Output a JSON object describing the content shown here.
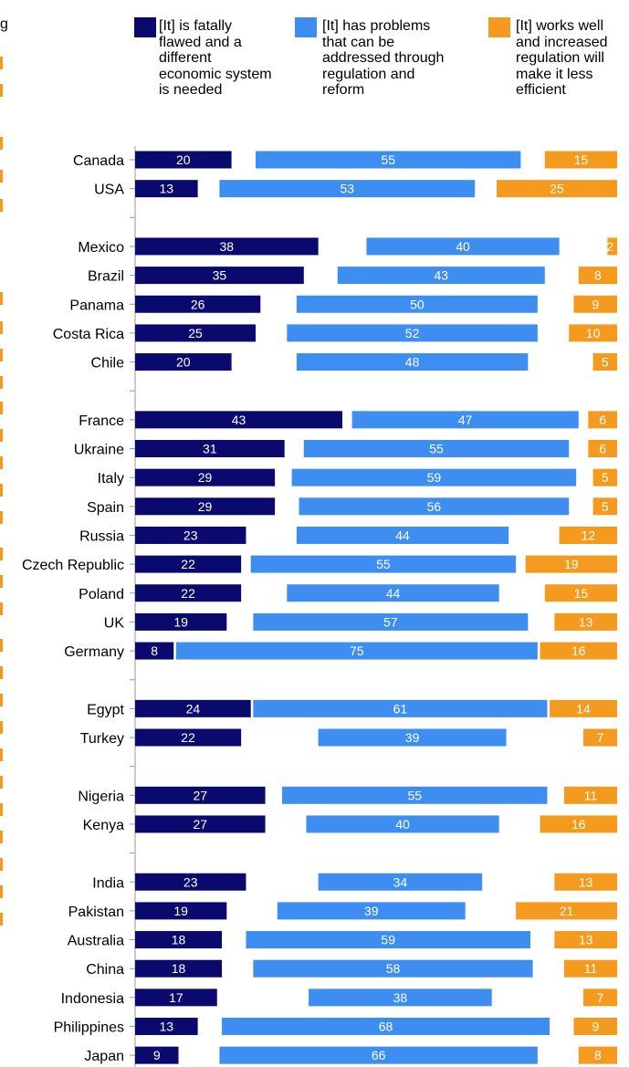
{
  "colors": {
    "fatally_flawed": "#0a0a6e",
    "has_problems": "#3d8ef0",
    "works_well": "#f39a1f",
    "axis": "#999999"
  },
  "legend": [
    {
      "key": "fatally_flawed",
      "label": "[It] is fatally\nflawed and a\ndifferent\neconomic system\nis needed"
    },
    {
      "key": "has_problems",
      "label": "[It] has problems\nthat can be\naddressed through\nregulation and\nreform"
    },
    {
      "key": "works_well",
      "label": "[It] works well\nand increased\nregulation will\nmake it less\nefficient"
    }
  ],
  "cropped_text": "g",
  "chart_data": {
    "type": "bar",
    "orientation": "horizontal",
    "layout": "stacked-offset",
    "groups": [
      [
        "Canada",
        "USA"
      ],
      [
        "Mexico",
        "Brazil",
        "Panama",
        "Costa Rica",
        "Chile"
      ],
      [
        "France",
        "Ukraine",
        "Italy",
        "Spain",
        "Russia",
        "Czech Republic",
        "Poland",
        "UK",
        "Germany"
      ],
      [
        "Egypt",
        "Turkey"
      ],
      [
        "Nigeria",
        "Kenya"
      ],
      [
        "India",
        "Pakistan",
        "Australia",
        "China",
        "Indonesia",
        "Philippines",
        "Japan"
      ]
    ],
    "categories": [
      "Canada",
      "USA",
      "Mexico",
      "Brazil",
      "Panama",
      "Costa Rica",
      "Chile",
      "France",
      "Ukraine",
      "Italy",
      "Spain",
      "Russia",
      "Czech Republic",
      "Poland",
      "UK",
      "Germany",
      "Egypt",
      "Turkey",
      "Nigeria",
      "Kenya",
      "India",
      "Pakistan",
      "Australia",
      "China",
      "Indonesia",
      "Philippines",
      "Japan"
    ],
    "series": [
      {
        "key": "fatally_flawed",
        "values": [
          20,
          13,
          38,
          35,
          26,
          25,
          20,
          43,
          31,
          29,
          29,
          23,
          22,
          22,
          19,
          8,
          24,
          22,
          27,
          27,
          23,
          19,
          18,
          18,
          17,
          13,
          9
        ]
      },
      {
        "key": "has_problems",
        "values": [
          55,
          53,
          40,
          43,
          50,
          52,
          48,
          47,
          55,
          59,
          56,
          44,
          55,
          44,
          57,
          75,
          61,
          39,
          55,
          40,
          34,
          39,
          59,
          58,
          38,
          68,
          66
        ]
      },
      {
        "key": "works_well",
        "values": [
          15,
          25,
          2,
          8,
          9,
          10,
          5,
          6,
          6,
          5,
          5,
          12,
          19,
          15,
          13,
          16,
          14,
          7,
          11,
          16,
          13,
          21,
          13,
          11,
          7,
          9,
          8
        ]
      }
    ],
    "unit": "%",
    "legend_position": "top"
  }
}
